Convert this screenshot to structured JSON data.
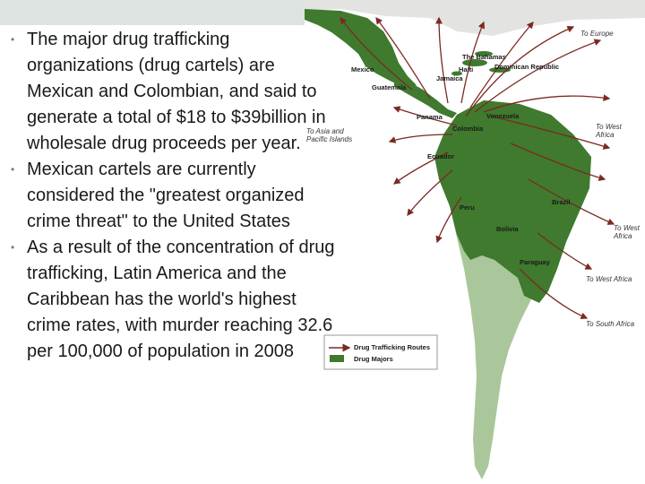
{
  "slide": {
    "bullets": [
      "The major drug trafficking organizations (drug cartels) are Mexican and Colombian, and said to generate a total of $18 to $39billion in wholesale drug proceeds per year.",
      "Mexican cartels are currently considered the \"greatest organized crime threat\" to the United States",
      "As a result of the concentration of drug trafficking, Latin America and the Caribbean has the world's highest crime rates, with murder reaching 32.6 per 100,000 of population in 2008"
    ]
  },
  "map": {
    "countries": {
      "mexico": "Mexico",
      "guatemala": "Guatemala",
      "panama": "Panama",
      "bahamas": "The Bahamas",
      "haiti": "Haiti",
      "jamaica": "Jamaica",
      "dominican_republic": "Dominican Republic",
      "venezuela": "Venezuela",
      "colombia": "Colombia",
      "ecuador": "Ecuador",
      "peru": "Peru",
      "brazil": "Brazil",
      "bolivia": "Bolivia",
      "paraguay": "Paraguay"
    },
    "destinations": {
      "europe": "To Europe",
      "asia_line1": "To Asia and",
      "asia_line2": "Pacific Islands",
      "west_africa_1_line1": "To West",
      "west_africa_1_line2": "Africa",
      "west_africa_2_line1": "To West",
      "west_africa_2_line2": "Africa",
      "west_africa_3": "To West Africa",
      "south_africa": "To South Africa"
    },
    "legend": {
      "routes": "Drug Trafficking Routes",
      "majors": "Drug Majors"
    },
    "colors": {
      "drug_majors": "#3f7a2e",
      "other_land": "#a9c79a",
      "route_arrow": "#7a2a22"
    }
  }
}
